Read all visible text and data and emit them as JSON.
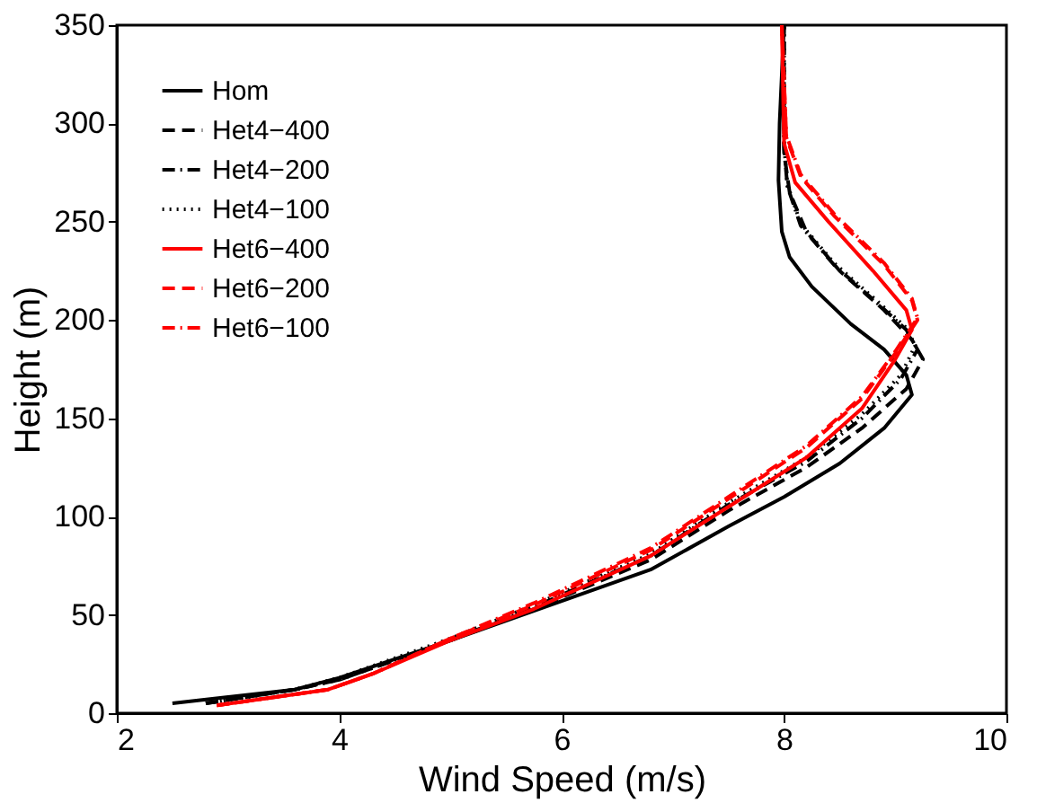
{
  "chart_data": {
    "type": "line",
    "xlabel": "Wind Speed (m/s)",
    "ylabel": "Height (m)",
    "xlim": [
      2,
      10
    ],
    "xticks": [
      2,
      4,
      6,
      8,
      10
    ],
    "ylim": [
      0,
      350
    ],
    "yticks": [
      0,
      50,
      100,
      150,
      200,
      250,
      300,
      350
    ],
    "grid": false,
    "legend": "top left",
    "marker": "none",
    "series": [
      {
        "name": "Hom",
        "color": "#000000",
        "line_style": "solid",
        "x": [
          2.5,
          3.6,
          4.0,
          5.0,
          5.75,
          6.8,
          7.5,
          8.0,
          8.5,
          8.9,
          9.15,
          9.1,
          8.9,
          8.6,
          8.25,
          8.05,
          7.98,
          7.95,
          7.96,
          8.0
        ],
        "values": [
          5,
          12,
          18,
          37,
          52,
          73,
          95,
          110,
          127,
          145,
          162,
          172,
          185,
          198,
          217,
          232,
          245,
          271,
          300,
          350
        ]
      },
      {
        "name": "Het4−400",
        "color": "#000000",
        "line_style": "dashed",
        "x": [
          2.8,
          3.6,
          4.0,
          5.0,
          5.75,
          6.8,
          7.5,
          8.2,
          8.7,
          9.1,
          9.25,
          9.15,
          8.9,
          8.5,
          8.2,
          8.05,
          8.0,
          8.0
        ],
        "values": [
          5,
          12,
          17,
          37,
          53,
          78,
          103,
          125,
          145,
          165,
          180,
          190,
          205,
          225,
          245,
          265,
          285,
          350
        ]
      },
      {
        "name": "Het4−200",
        "color": "#000000",
        "line_style": "dashdot",
        "x": [
          2.8,
          3.6,
          4.0,
          5.0,
          5.75,
          6.8,
          7.5,
          8.2,
          8.7,
          9.05,
          9.2,
          9.1,
          8.85,
          8.45,
          8.15,
          8.03,
          8.0,
          8.0
        ],
        "values": [
          5,
          12,
          17,
          37,
          54,
          80,
          106,
          128,
          150,
          170,
          185,
          195,
          208,
          228,
          248,
          268,
          288,
          350
        ]
      },
      {
        "name": "Het4−100",
        "color": "#000000",
        "line_style": "dotted",
        "x": [
          2.8,
          3.6,
          4.0,
          5.0,
          5.75,
          6.8,
          7.5,
          8.2,
          8.7,
          9.05,
          9.18,
          9.1,
          8.85,
          8.45,
          8.15,
          8.03,
          8.0,
          8.0
        ],
        "values": [
          5,
          12,
          18,
          38,
          55,
          81,
          107,
          130,
          152,
          172,
          187,
          196,
          209,
          229,
          249,
          269,
          289,
          350
        ]
      },
      {
        "name": "Het6−400",
        "color": "#ff0000",
        "line_style": "solid",
        "x": [
          2.9,
          3.9,
          4.3,
          5.0,
          5.75,
          6.8,
          7.5,
          8.2,
          8.7,
          9.0,
          9.15,
          9.1,
          8.8,
          8.4,
          8.1,
          8.0,
          7.98
        ],
        "values": [
          4,
          12,
          20,
          37,
          53,
          80,
          105,
          130,
          155,
          180,
          195,
          205,
          225,
          250,
          270,
          290,
          350
        ]
      },
      {
        "name": "Het6−200",
        "color": "#ff0000",
        "line_style": "dashed",
        "x": [
          2.9,
          3.9,
          4.3,
          5.0,
          5.75,
          6.8,
          7.5,
          8.2,
          8.7,
          9.0,
          9.2,
          9.15,
          8.9,
          8.45,
          8.15,
          8.02,
          7.98
        ],
        "values": [
          4,
          12,
          20,
          38,
          55,
          83,
          109,
          135,
          160,
          183,
          200,
          210,
          228,
          253,
          273,
          293,
          350
        ]
      },
      {
        "name": "Het6−100",
        "color": "#ff0000",
        "line_style": "dashdot",
        "x": [
          2.9,
          3.9,
          4.3,
          5.0,
          5.75,
          6.8,
          7.5,
          8.2,
          8.7,
          9.0,
          9.2,
          9.15,
          8.9,
          8.45,
          8.15,
          8.02,
          7.98
        ],
        "values": [
          4,
          12,
          20,
          38,
          56,
          84,
          110,
          136,
          161,
          184,
          201,
          211,
          229,
          254,
          274,
          294,
          350
        ]
      }
    ]
  }
}
